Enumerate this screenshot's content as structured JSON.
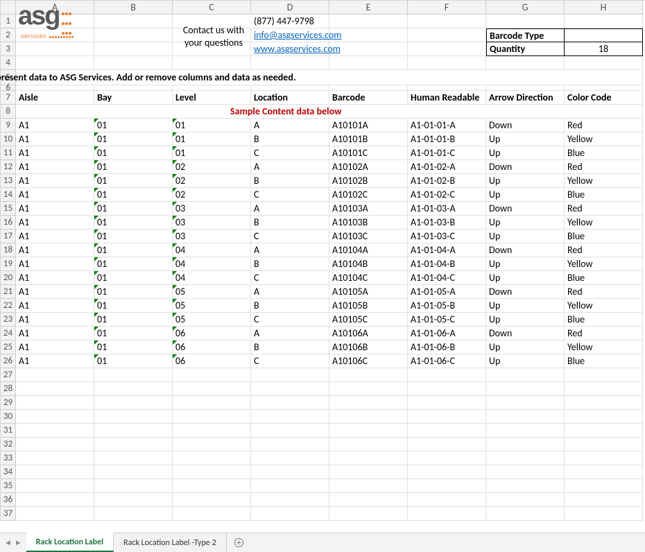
{
  "colHeaders": [
    "A",
    "B",
    "C",
    "D",
    "E",
    "F",
    "G",
    "H"
  ],
  "rowCount": 37,
  "logo": {
    "text": "asg",
    "sub": "services"
  },
  "contact": {
    "label": "Contact us with your questions",
    "phone": "(877) 447-9798",
    "email": "info@asgservices.com",
    "url": "www.asgservices.com"
  },
  "barcode": {
    "typeLabel": "Barcode Type",
    "typeValue": "",
    "qtyLabel": "Quantity",
    "qtyValue": "18"
  },
  "guide": "This is a guide to help you prepare and present data to ASG Services.  Add or remove columns and data as needed.",
  "columns": [
    "Aisle",
    "Bay",
    "Level",
    "Location",
    "Barcode",
    "Human Readable",
    "Arrow Direction",
    "Color Code"
  ],
  "sampleHeader": "Sample Content data below",
  "rows": [
    [
      "A1",
      "01",
      "01",
      "A",
      "A10101A",
      "A1-01-01-A",
      "Down",
      "Red"
    ],
    [
      "A1",
      "01",
      "01",
      "B",
      "A10101B",
      "A1-01-01-B",
      "Up",
      "Yellow"
    ],
    [
      "A1",
      "01",
      "01",
      "C",
      "A10101C",
      "A1-01-01-C",
      "Up",
      "Blue"
    ],
    [
      "A1",
      "01",
      "02",
      "A",
      "A10102A",
      "A1-01-02-A",
      "Down",
      "Red"
    ],
    [
      "A1",
      "01",
      "02",
      "B",
      "A10102B",
      "A1-01-02-B",
      "Up",
      "Yellow"
    ],
    [
      "A1",
      "01",
      "02",
      "C",
      "A10102C",
      "A1-01-02-C",
      "Up",
      "Blue"
    ],
    [
      "A1",
      "01",
      "03",
      "A",
      "A10103A",
      "A1-01-03-A",
      "Down",
      "Red"
    ],
    [
      "A1",
      "01",
      "03",
      "B",
      "A10103B",
      "A1-01-03-B",
      "Up",
      "Yellow"
    ],
    [
      "A1",
      "01",
      "03",
      "C",
      "A10103C",
      "A1-01-03-C",
      "Up",
      "Blue"
    ],
    [
      "A1",
      "01",
      "04",
      "A",
      "A10104A",
      "A1-01-04-A",
      "Down",
      "Red"
    ],
    [
      "A1",
      "01",
      "04",
      "B",
      "A10104B",
      "A1-01-04-B",
      "Up",
      "Yellow"
    ],
    [
      "A1",
      "01",
      "04",
      "C",
      "A10104C",
      "A1-01-04-C",
      "Up",
      "Blue"
    ],
    [
      "A1",
      "01",
      "05",
      "A",
      "A10105A",
      "A1-01-05-A",
      "Down",
      "Red"
    ],
    [
      "A1",
      "01",
      "05",
      "B",
      "A10105B",
      "A1-01-05-B",
      "Up",
      "Yellow"
    ],
    [
      "A1",
      "01",
      "05",
      "C",
      "A10105C",
      "A1-01-05-C",
      "Up",
      "Blue"
    ],
    [
      "A1",
      "01",
      "06",
      "A",
      "A10106A",
      "A1-01-06-A",
      "Down",
      "Red"
    ],
    [
      "A1",
      "01",
      "06",
      "B",
      "A10106B",
      "A1-01-06-B",
      "Up",
      "Yellow"
    ],
    [
      "A1",
      "01",
      "06",
      "C",
      "A10106C",
      "A1-01-06-C",
      "Up",
      "Blue"
    ]
  ],
  "tabs": {
    "active": "Rack Location Label",
    "other": "Rack Location Label -Type 2"
  },
  "colors": {
    "link": "#0563c1",
    "red": "#c00000",
    "accent": "#217346",
    "logoGrey": "#595959",
    "logoOrange": "#ed7d31"
  }
}
